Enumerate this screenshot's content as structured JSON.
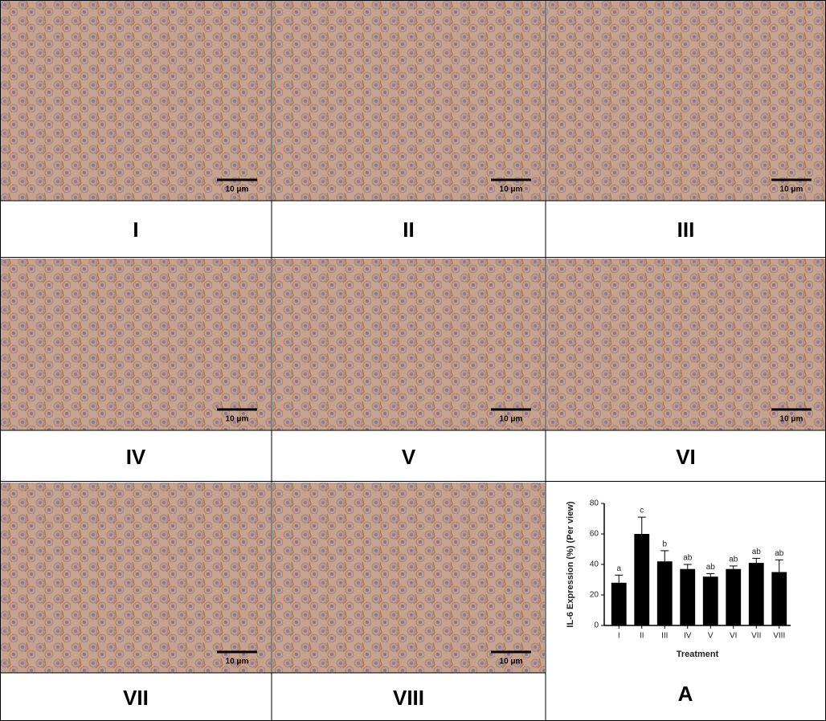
{
  "panels": [
    {
      "label": "I",
      "scale_bar": "10 μm"
    },
    {
      "label": "II",
      "scale_bar": "10 μm"
    },
    {
      "label": "III",
      "scale_bar": "10 μm"
    },
    {
      "label": "IV",
      "scale_bar": "10 μm"
    },
    {
      "label": "V",
      "scale_bar": "10 μm"
    },
    {
      "label": "VI",
      "scale_bar": "10 μm"
    },
    {
      "label": "VII",
      "scale_bar": "10 μm"
    },
    {
      "label": "VIII",
      "scale_bar": "10 μm"
    }
  ],
  "chart_panel_label": "A",
  "chart_data": {
    "type": "bar",
    "y_label": "IL-6 Expression (%) (Per view)",
    "x_label": "Treatment",
    "categories": [
      "I",
      "II",
      "III",
      "IV",
      "V",
      "VI",
      "VII",
      "VIII"
    ],
    "values": [
      28,
      60,
      42,
      37,
      32,
      37,
      41,
      35
    ],
    "errors": [
      5,
      11,
      7,
      3,
      2,
      2,
      3,
      8
    ],
    "annotations": [
      "a",
      "c",
      "b",
      "ab",
      "ab",
      "ab",
      "ab",
      "ab"
    ],
    "color": "#000000",
    "ylim": [
      0,
      80
    ],
    "yticks": [
      0,
      20,
      40,
      60,
      80
    ]
  }
}
